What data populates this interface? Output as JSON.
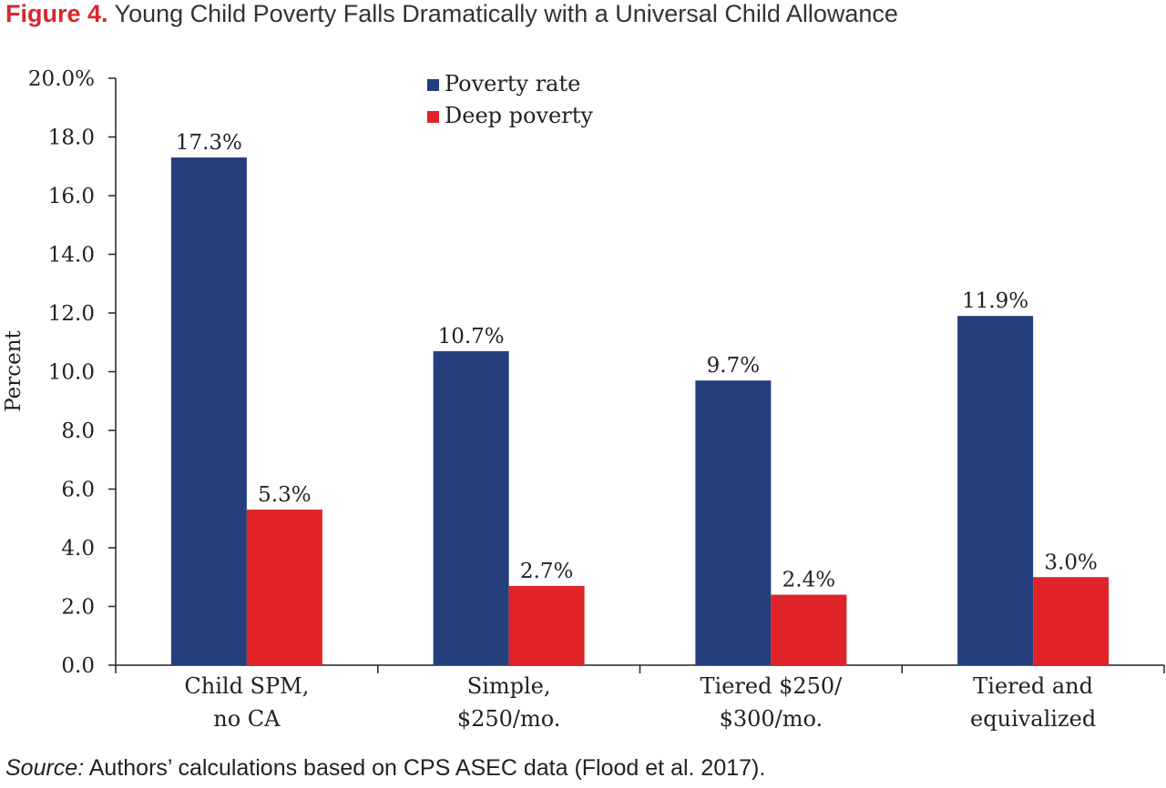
{
  "figure": {
    "label": "Figure 4.",
    "title": "Young Child Poverty Falls Dramatically with a Universal Child Allowance"
  },
  "source": {
    "label": "Source:",
    "text": "Authors’ calculations based on CPS ASEC data (Flood et al. 2017)."
  },
  "chart_data": {
    "type": "bar",
    "title": "Young Child Poverty Falls Dramatically with a Universal Child Allowance",
    "xlabel": "",
    "ylabel": "Percent",
    "ylim": [
      0,
      20
    ],
    "yticks": [
      "0.0",
      "2.0",
      "4.0",
      "6.0",
      "8.0",
      "10.0",
      "12.0",
      "14.0",
      "16.0",
      "18.0",
      "20.0%"
    ],
    "categories": [
      [
        "Child SPM,",
        "no CA"
      ],
      [
        "Simple,",
        "$250/mo."
      ],
      [
        "Tiered $250/",
        "$300/mo."
      ],
      [
        "Tiered and",
        "equivalized"
      ]
    ],
    "series": [
      {
        "name": "Poverty rate",
        "color": "#243f7c",
        "values": [
          17.3,
          10.7,
          9.7,
          11.9
        ],
        "labels": [
          "17.3%",
          "10.7%",
          "9.7%",
          "11.9%"
        ]
      },
      {
        "name": "Deep poverty",
        "color": "#e0242a",
        "values": [
          5.3,
          2.7,
          2.4,
          3.0
        ],
        "labels": [
          "5.3%",
          "2.7%",
          "2.4%",
          "3.0%"
        ]
      }
    ],
    "legend_position": "top-center",
    "grid": false
  }
}
